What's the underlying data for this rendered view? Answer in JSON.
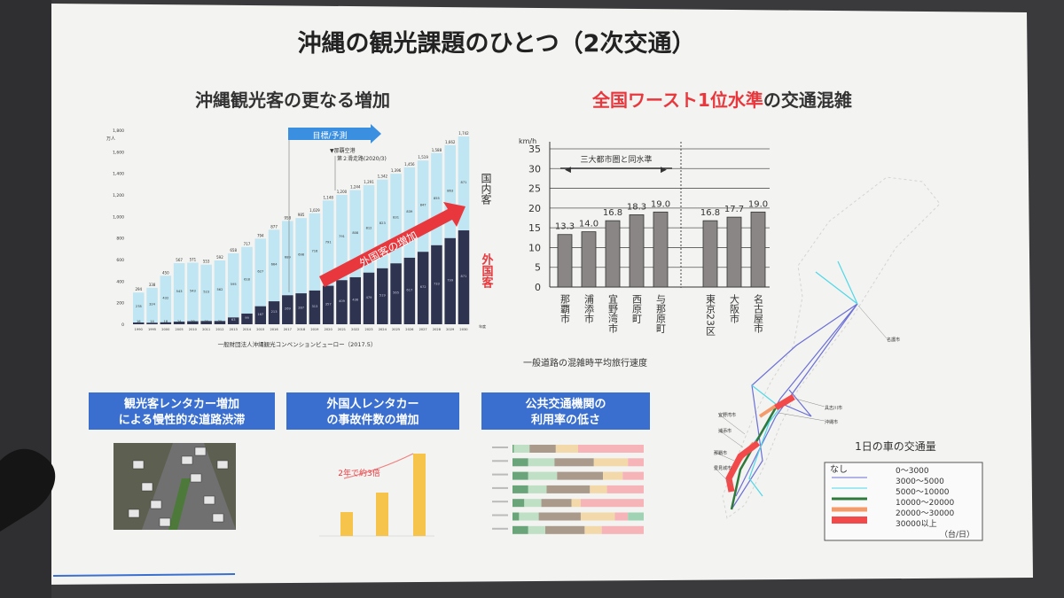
{
  "slide": {
    "title": "沖縄の観光課題のひとつ（2次交通）",
    "left_heading": "沖縄観光客の更なる増加",
    "right_heading_red": "全国ワースト1位水準",
    "right_heading_rest": "の交通混雑"
  },
  "colors": {
    "domestic": "#bfe6f2",
    "foreign": "#2e3350",
    "accent_red": "#e8383d",
    "header_blue": "#3a6fd0",
    "speed_bar": "#8a8686",
    "accident_bar": "#f6c44a"
  },
  "chart_data": [
    {
      "type": "bar",
      "stacked": true,
      "ylabel": "万人",
      "xlabel": "年度",
      "ylim": [
        0,
        1800
      ],
      "yticks": [
        "0",
        "200",
        "400",
        "600",
        "800",
        "1,000",
        "1,200",
        "1,400",
        "1,600",
        "1,800"
      ],
      "categories": [
        "1990",
        "1995",
        "2000",
        "2005",
        "2010",
        "2011",
        "2012",
        "2013",
        "2014",
        "2015",
        "2016",
        "2017",
        "2018",
        "2019",
        "2020",
        "2021",
        "2022",
        "2023",
        "2024",
        "2025",
        "2026",
        "2027",
        "2028",
        "2029",
        "2030"
      ],
      "totals": [
        294,
        338,
        450,
        567,
        571,
        553,
        592,
        658,
        717,
        794,
        877,
        958,
        985,
        1029,
        1148,
        1200,
        1244,
        1291,
        1342,
        1396,
        1456,
        1519,
        1588,
        1662,
        1742
      ],
      "series": [
        {
          "name": "外国客",
          "values": [
            16,
            14,
            18,
            24,
            28,
            30,
            30,
            63,
            99,
            167,
            213,
            269,
            287,
            313,
            357,
            409,
            436,
            479,
            519,
            565,
            617,
            672,
            733,
            799,
            871
          ]
        },
        {
          "name": "国内客",
          "values": [
            278,
            324,
            432,
            543,
            543,
            523,
            562,
            595,
            618,
            627,
            664,
            689,
            698,
            716,
            791,
            791,
            808,
            812,
            823,
            831,
            839,
            847,
            855,
            863,
            871
          ]
        }
      ],
      "annotations": {
        "target_label": "目標/予測",
        "airport_note_line1": "▼那覇空港",
        "airport_note_line2": "第２滑走路(2020/3)",
        "trend_label": "外国客の増加"
      },
      "legend": {
        "domestic": "国内客",
        "foreign": "外国客"
      },
      "source": "一般財団法人沖縄観光コンベンションビューロー（2017.5）"
    },
    {
      "type": "bar",
      "ylabel": "km/h",
      "ylim": [
        0,
        35
      ],
      "yticks": [
        "0",
        "5",
        "10",
        "15",
        "20",
        "25",
        "30",
        "35"
      ],
      "grid": true,
      "categories": [
        "那覇市",
        "浦添市",
        "宜野湾市",
        "西原町",
        "与那原町",
        "東京23区",
        "大阪市",
        "名古屋市"
      ],
      "values": [
        13.3,
        14.0,
        16.8,
        18.3,
        19.0,
        16.8,
        17.7,
        19.0
      ],
      "value_labels": [
        "13.3",
        "14.0",
        "16.8",
        "18.3",
        "19.0",
        "16.8",
        "17.7",
        "19.0"
      ],
      "annotation": "三大都市圏と同水準",
      "caption": "一般道路の混雑時平均旅行速度"
    },
    {
      "type": "bar",
      "annotation": "2年で約3倍",
      "relative_values": [
        0.27,
        0.49,
        0.93
      ]
    },
    {
      "type": "bar",
      "stacked": true,
      "orientation": "horizontal",
      "rows_percent": [
        [
          1,
          12,
          20,
          17,
          50,
          0
        ],
        [
          12,
          20,
          30,
          26,
          12,
          0
        ],
        [
          12,
          22,
          35,
          15,
          16,
          0
        ],
        [
          12,
          14,
          33,
          13,
          28,
          0
        ],
        [
          9,
          13,
          23,
          7,
          48,
          0
        ],
        [
          5,
          15,
          32,
          26,
          10,
          12
        ],
        [
          12,
          13,
          30,
          13,
          32,
          0
        ]
      ],
      "segment_colors": [
        "#6aa57a",
        "#bfe0c4",
        "#a99a8c",
        "#f3d9a9",
        "#f6b3b8",
        "#9fd3b4"
      ]
    }
  ],
  "panels": [
    {
      "line1": "観光客レンタカー増加",
      "line2": "による慢性的な道路渋滞"
    },
    {
      "line1": "外国人レンタカー",
      "line2": "の事故件数の増加"
    },
    {
      "line1": "公共交通機関の",
      "line2": "利用率の低さ"
    }
  ],
  "map": {
    "title": "1日の車の交通量",
    "cities": [
      "名護市",
      "具志川市",
      "沖縄市",
      "宜野湾市",
      "浦添市",
      "那覇市",
      "豊見城市"
    ],
    "legend": [
      {
        "label": "なし",
        "range": "0～3000",
        "color": "none"
      },
      {
        "range": "3000～5000",
        "color": "#6b6fd6"
      },
      {
        "range": "5000～10000",
        "color": "#4fd8e8"
      },
      {
        "range": "10000～20000",
        "color": "#2f7a3a"
      },
      {
        "range": "20000～30000",
        "color": "#f59a6a"
      },
      {
        "range": "30000以上",
        "color": "#f24a4a"
      }
    ],
    "unit": "（台/日）"
  }
}
